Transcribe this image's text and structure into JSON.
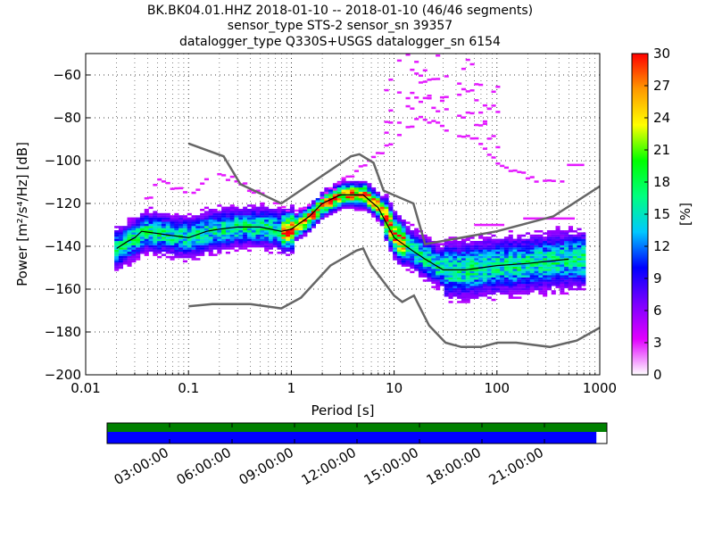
{
  "chart_data": {
    "type": "heatmap",
    "title_lines": [
      "BK.BK04.01.HHZ   2018-01-10 -- 2018-01-10  (46/46 segments)",
      "sensor_type STS-2 sensor_sn 39357",
      "datalogger_type Q330S+USGS datalogger_sn 6154"
    ],
    "xlabel": "Period [s]",
    "ylabel": "Power [m²/s⁴/Hz] [dB]",
    "xscale": "log",
    "xlim": [
      0.01,
      1000
    ],
    "ylim": [
      -200,
      -50
    ],
    "xticks": [
      {
        "v": 0.01,
        "label": "0.01"
      },
      {
        "v": 0.1,
        "label": "0.1"
      },
      {
        "v": 1,
        "label": "1"
      },
      {
        "v": 10,
        "label": "10"
      },
      {
        "v": 100,
        "label": "100"
      },
      {
        "v": 1000,
        "label": "1000"
      }
    ],
    "yticks": [
      {
        "v": -60,
        "label": "−60"
      },
      {
        "v": -80,
        "label": "−80"
      },
      {
        "v": -100,
        "label": "−100"
      },
      {
        "v": -120,
        "label": "−120"
      },
      {
        "v": -140,
        "label": "−140"
      },
      {
        "v": -160,
        "label": "−160"
      },
      {
        "v": -180,
        "label": "−180"
      },
      {
        "v": -200,
        "label": "−200"
      }
    ],
    "grid": true,
    "colorbar": {
      "label": "[%]",
      "range": [
        0,
        30
      ],
      "ticks": [
        "0",
        "3",
        "6",
        "9",
        "12",
        "15",
        "18",
        "21",
        "24",
        "27",
        "30"
      ],
      "colors": [
        "#ffffff",
        "#e100ff",
        "#7a00ff",
        "#0000ff",
        "#00c8ff",
        "#00ff80",
        "#00ff00",
        "#ffff00",
        "#ff9900",
        "#ff0000"
      ]
    },
    "mean_curve": [
      [
        0.02,
        -141
      ],
      [
        0.025,
        -138
      ],
      [
        0.03,
        -136
      ],
      [
        0.035,
        -133
      ],
      [
        0.05,
        -134
      ],
      [
        0.07,
        -135
      ],
      [
        0.1,
        -136
      ],
      [
        0.15,
        -133
      ],
      [
        0.2,
        -132
      ],
      [
        0.3,
        -131
      ],
      [
        0.5,
        -131
      ],
      [
        0.8,
        -133
      ],
      [
        1,
        -132
      ],
      [
        1.5,
        -126
      ],
      [
        2,
        -120
      ],
      [
        3,
        -116
      ],
      [
        5,
        -116
      ],
      [
        7,
        -122
      ],
      [
        10,
        -136
      ],
      [
        15,
        -142
      ],
      [
        20,
        -146
      ],
      [
        30,
        -151
      ],
      [
        50,
        -151
      ],
      [
        100,
        -149
      ],
      [
        200,
        -148
      ],
      [
        500,
        -146
      ]
    ],
    "nhnm": [
      [
        0.1,
        -92
      ],
      [
        0.22,
        -98
      ],
      [
        0.32,
        -111
      ],
      [
        0.8,
        -120
      ],
      [
        3.8,
        -98
      ],
      [
        4.6,
        -97
      ],
      [
        6.3,
        -101
      ],
      [
        7.9,
        -114
      ],
      [
        15.4,
        -120
      ],
      [
        20,
        -139
      ],
      [
        100,
        -133
      ],
      [
        354,
        -126
      ],
      [
        1000,
        -112
      ]
    ],
    "nlnm": [
      [
        0.1,
        -168
      ],
      [
        0.17,
        -167
      ],
      [
        0.4,
        -167
      ],
      [
        0.8,
        -169
      ],
      [
        1.24,
        -164
      ],
      [
        2.4,
        -149
      ],
      [
        4.3,
        -142
      ],
      [
        5,
        -141
      ],
      [
        6,
        -149
      ],
      [
        10,
        -163
      ],
      [
        12,
        -166
      ],
      [
        15.6,
        -163
      ],
      [
        21.9,
        -177
      ],
      [
        31.6,
        -185
      ],
      [
        45,
        -187
      ],
      [
        70,
        -187
      ],
      [
        101,
        -185
      ],
      [
        154,
        -185
      ],
      [
        328,
        -187
      ],
      [
        600,
        -184
      ],
      [
        1000,
        -178
      ]
    ],
    "upper_branch": [
      [
        0.04,
        -118
      ],
      [
        0.05,
        -111
      ],
      [
        0.07,
        -115
      ],
      [
        0.1,
        -117
      ],
      [
        0.18,
        -107
      ],
      [
        0.3,
        -112
      ],
      [
        0.6,
        -119
      ],
      [
        1,
        -126
      ],
      [
        2,
        -118
      ],
      [
        5,
        -103
      ],
      [
        10,
        -92
      ],
      [
        17,
        -82
      ],
      [
        30,
        -86
      ],
      [
        60,
        -92
      ],
      [
        100,
        -102
      ],
      [
        200,
        -110
      ],
      [
        400,
        -110
      ]
    ],
    "timeline": {
      "ticks": [
        "03:00:00",
        "06:00:00",
        "09:00:00",
        "12:00:00",
        "15:00:00",
        "18:00:00",
        "21:00:00"
      ],
      "coverage_fraction": 0.979,
      "colors": {
        "data": "#008000",
        "used": "#0000ff"
      }
    },
    "line_colors": {
      "models": "#666666",
      "mean": "#000000"
    }
  }
}
